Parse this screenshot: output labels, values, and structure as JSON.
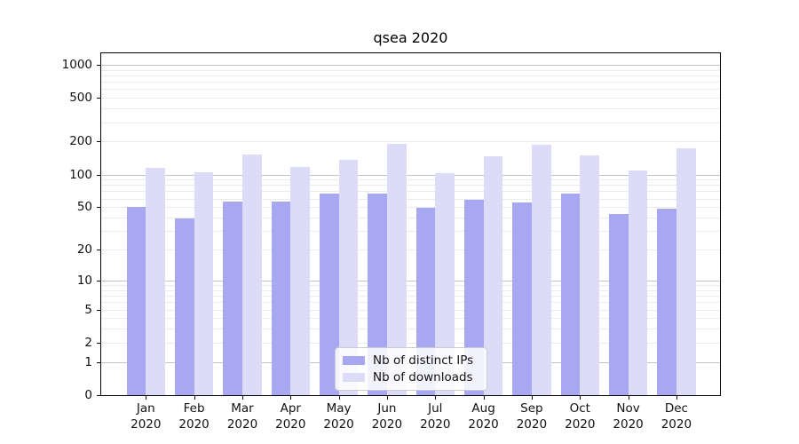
{
  "title": "qsea 2020",
  "legend": {
    "items": [
      {
        "label": "Nb of distinct IPs",
        "color": "#a8a8f2"
      },
      {
        "label": "Nb of downloads",
        "color": "#dcdcf8"
      }
    ],
    "position": "lower center"
  },
  "chart_data": {
    "type": "bar",
    "title": "qsea 2020",
    "xlabel": "",
    "ylabel": "",
    "scale": "log1p",
    "categories": [
      "Jan 2020",
      "Feb 2020",
      "Mar 2020",
      "Apr 2020",
      "May 2020",
      "Jun 2020",
      "Jul 2020",
      "Aug 2020",
      "Sep 2020",
      "Oct 2020",
      "Nov 2020",
      "Dec 2020"
    ],
    "series": [
      {
        "name": "Nb of distinct IPs",
        "color": "#a8a8f2",
        "values": [
          50,
          39,
          56,
          56,
          67,
          67,
          49,
          59,
          55,
          67,
          43,
          48
        ]
      },
      {
        "name": "Nb of downloads",
        "color": "#dcdcf8",
        "values": [
          116,
          105,
          152,
          117,
          137,
          191,
          103,
          148,
          188,
          151,
          109,
          175
        ]
      }
    ],
    "yticks": [
      0,
      1,
      2,
      5,
      10,
      20,
      50,
      100,
      200,
      500,
      1000
    ],
    "ylim": [
      0,
      1272
    ],
    "grid": "horizontal",
    "major_grid_values": [
      1,
      10,
      100,
      1000
    ],
    "major_grid_color": "#c2c2c2",
    "minor_grid_color": "#ebebeb",
    "legend_position": "lower center"
  }
}
